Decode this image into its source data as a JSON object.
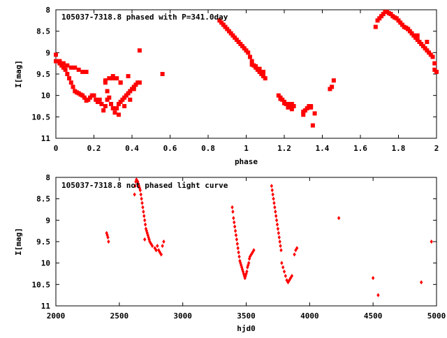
{
  "chart_data": [
    {
      "type": "scatter",
      "title": "105037-7318.8 phased with P=341.0day",
      "xlabel": "phase",
      "ylabel": "I[mag]",
      "xlim": [
        0,
        2
      ],
      "ylim": [
        8,
        11
      ],
      "y_inverted": true,
      "xticks": [
        0,
        0.2,
        0.4,
        0.6,
        0.8,
        1,
        1.2,
        1.4,
        1.6,
        1.8,
        2
      ],
      "yticks": [
        8,
        8.5,
        9,
        9.5,
        10,
        10.5,
        11
      ],
      "xtick_labels": [
        "0",
        "0.2",
        "0.4",
        "0.6",
        "0.8",
        "1",
        "1.2",
        "1.4",
        "1.6",
        "1.8",
        "2"
      ],
      "ytick_labels": [
        "8",
        "8.5",
        "9",
        "9.5",
        "10",
        "10.5",
        "11"
      ],
      "marker_color": "#ff0000",
      "marker": "filled-square",
      "x": [
        0.0,
        0.01,
        0.02,
        0.03,
        0.04,
        0.05,
        0.06,
        0.07,
        0.08,
        0.09,
        0.1,
        0.11,
        0.12,
        0.13,
        0.14,
        0.15,
        0.16,
        0.17,
        0.18,
        0.19,
        0.2,
        0.21,
        0.22,
        0.23,
        0.24,
        0.25,
        0.26,
        0.27,
        0.28,
        0.29,
        0.3,
        0.31,
        0.32,
        0.33,
        0.34,
        0.35,
        0.36,
        0.37,
        0.38,
        0.39,
        0.4,
        0.41,
        0.42,
        0.43,
        0.44,
        0.0,
        0.02,
        0.04,
        0.06,
        0.08,
        0.1,
        0.12,
        0.14,
        0.16,
        0.26,
        0.28,
        0.3,
        0.32,
        0.34,
        0.22,
        0.26,
        0.3,
        0.34,
        0.38,
        0.27,
        0.33,
        0.36,
        0.39,
        0.41,
        0.44,
        0.56,
        0.86,
        0.87,
        0.88,
        0.89,
        0.9,
        0.91,
        0.92,
        0.93,
        0.94,
        0.95,
        0.96,
        0.97,
        0.98,
        0.99,
        1.0,
        1.01,
        1.02,
        1.03,
        1.04,
        1.05,
        1.06,
        1.07,
        1.08,
        1.09,
        1.1,
        1.03,
        1.05,
        1.07,
        1.09,
        1.17,
        1.18,
        1.19,
        1.2,
        1.21,
        1.22,
        1.23,
        1.24,
        1.25,
        1.18,
        1.2,
        1.22,
        1.24,
        1.3,
        1.31,
        1.32,
        1.33,
        1.34,
        1.35,
        1.36,
        1.3,
        1.34,
        1.44,
        1.45,
        1.46,
        1.68,
        1.69,
        1.7,
        1.71,
        1.72,
        1.73,
        1.74,
        1.75,
        1.76,
        1.77,
        1.78,
        1.79,
        1.8,
        1.81,
        1.82,
        1.83,
        1.84,
        1.85,
        1.86,
        1.87,
        1.88,
        1.89,
        1.9,
        1.91,
        1.92,
        1.93,
        1.94,
        1.95,
        1.96,
        1.97,
        1.98,
        1.99,
        2.0,
        1.99,
        1.85,
        1.9,
        1.95
      ],
      "y": [
        9.05,
        9.2,
        9.25,
        9.3,
        9.35,
        9.4,
        9.5,
        9.6,
        9.7,
        9.8,
        9.9,
        9.93,
        9.95,
        9.98,
        10.0,
        10.05,
        10.12,
        10.1,
        10.05,
        10.0,
        10.0,
        10.1,
        10.15,
        10.1,
        10.2,
        10.35,
        10.25,
        10.1,
        10.05,
        10.2,
        10.3,
        10.4,
        10.3,
        10.2,
        10.15,
        10.1,
        10.05,
        10.0,
        9.95,
        9.9,
        9.85,
        9.8,
        9.75,
        9.7,
        9.7,
        9.2,
        9.2,
        9.25,
        9.3,
        9.35,
        9.35,
        9.4,
        9.45,
        9.45,
        9.65,
        9.6,
        9.55,
        9.6,
        9.7,
        10.15,
        9.7,
        9.6,
        9.7,
        9.55,
        9.9,
        10.45,
        10.25,
        10.1,
        9.85,
        8.95,
        9.5,
        8.25,
        8.3,
        8.35,
        8.4,
        8.45,
        8.5,
        8.55,
        8.6,
        8.65,
        8.7,
        8.75,
        8.8,
        8.85,
        8.9,
        8.95,
        9.0,
        9.1,
        9.2,
        9.3,
        9.35,
        9.4,
        9.45,
        9.5,
        9.55,
        9.6,
        9.28,
        9.32,
        9.38,
        9.45,
        10.0,
        10.05,
        10.1,
        10.15,
        10.2,
        10.2,
        10.25,
        10.2,
        10.25,
        10.08,
        10.18,
        10.28,
        10.32,
        10.38,
        10.35,
        10.3,
        10.25,
        10.28,
        10.7,
        10.42,
        10.45,
        10.25,
        9.85,
        9.8,
        9.65,
        8.4,
        8.25,
        8.2,
        8.15,
        8.1,
        8.05,
        8.05,
        8.08,
        8.1,
        8.15,
        8.18,
        8.2,
        8.25,
        8.3,
        8.35,
        8.4,
        8.42,
        8.45,
        8.5,
        8.55,
        8.6,
        8.65,
        8.7,
        8.75,
        8.8,
        8.85,
        8.9,
        8.95,
        9.0,
        9.05,
        9.1,
        9.25,
        9.45,
        9.4,
        8.45,
        8.6,
        8.75
      ]
    },
    {
      "type": "scatter",
      "title": "105037-7318.8 not phased light curve",
      "xlabel": "hjd0",
      "ylabel": "I[mag]",
      "xlim": [
        2000,
        5000
      ],
      "ylim": [
        8,
        11
      ],
      "y_inverted": true,
      "xticks": [
        2000,
        2500,
        3000,
        3500,
        4000,
        4500,
        5000
      ],
      "yticks": [
        8,
        8.5,
        9,
        9.5,
        10,
        10.5,
        11
      ],
      "xtick_labels": [
        "2000",
        "2500",
        "3000",
        "3500",
        "4000",
        "4500",
        "5000"
      ],
      "ytick_labels": [
        "8",
        "8.5",
        "9",
        "9.5",
        "10",
        "10.5",
        "11"
      ],
      "marker_color": "#ff0000",
      "marker": "filled-diamond",
      "x": [
        2400,
        2405,
        2410,
        2415,
        2620,
        2625,
        2630,
        2635,
        2640,
        2645,
        2650,
        2655,
        2660,
        2665,
        2670,
        2675,
        2680,
        2685,
        2690,
        2695,
        2700,
        2705,
        2710,
        2715,
        2720,
        2725,
        2730,
        2735,
        2740,
        2750,
        2760,
        2780,
        2790,
        2800,
        2810,
        2820,
        2830,
        2840,
        2850,
        2700,
        3390,
        3395,
        3400,
        3405,
        3410,
        3415,
        3420,
        3425,
        3430,
        3435,
        3440,
        3445,
        3450,
        3455,
        3460,
        3465,
        3470,
        3475,
        3480,
        3485,
        3490,
        3495,
        3500,
        3505,
        3510,
        3515,
        3520,
        3525,
        3530,
        3540,
        3550,
        3560,
        3700,
        3705,
        3710,
        3715,
        3720,
        3725,
        3730,
        3735,
        3740,
        3745,
        3750,
        3755,
        3760,
        3765,
        3770,
        3775,
        3780,
        3790,
        3800,
        3810,
        3820,
        3830,
        3840,
        3850,
        3860,
        3880,
        3890,
        3900,
        4230,
        4500,
        4540,
        4880,
        4960
      ],
      "y": [
        9.3,
        9.35,
        9.4,
        9.5,
        8.4,
        8.2,
        8.1,
        8.05,
        8.08,
        8.1,
        8.15,
        8.2,
        8.25,
        8.3,
        8.4,
        8.5,
        8.6,
        8.7,
        8.8,
        8.9,
        9.0,
        9.1,
        9.2,
        9.25,
        9.3,
        9.35,
        9.4,
        9.45,
        9.5,
        9.55,
        9.6,
        9.65,
        9.7,
        9.6,
        9.7,
        9.75,
        9.8,
        9.6,
        9.5,
        9.45,
        8.7,
        8.8,
        8.95,
        9.05,
        9.15,
        9.25,
        9.35,
        9.45,
        9.55,
        9.65,
        9.75,
        9.85,
        9.95,
        10.0,
        10.05,
        10.1,
        10.15,
        10.2,
        10.25,
        10.3,
        10.35,
        10.3,
        10.25,
        10.2,
        10.1,
        10.05,
        10.0,
        9.9,
        9.85,
        9.8,
        9.75,
        9.7,
        8.2,
        8.3,
        8.4,
        8.5,
        8.6,
        8.7,
        8.8,
        8.9,
        9.0,
        9.1,
        9.2,
        9.3,
        9.4,
        9.5,
        9.6,
        9.7,
        10.0,
        10.1,
        10.2,
        10.3,
        10.4,
        10.45,
        10.4,
        10.35,
        10.3,
        9.8,
        9.7,
        9.65,
        8.95,
        10.35,
        10.75,
        10.45,
        9.5
      ]
    }
  ]
}
